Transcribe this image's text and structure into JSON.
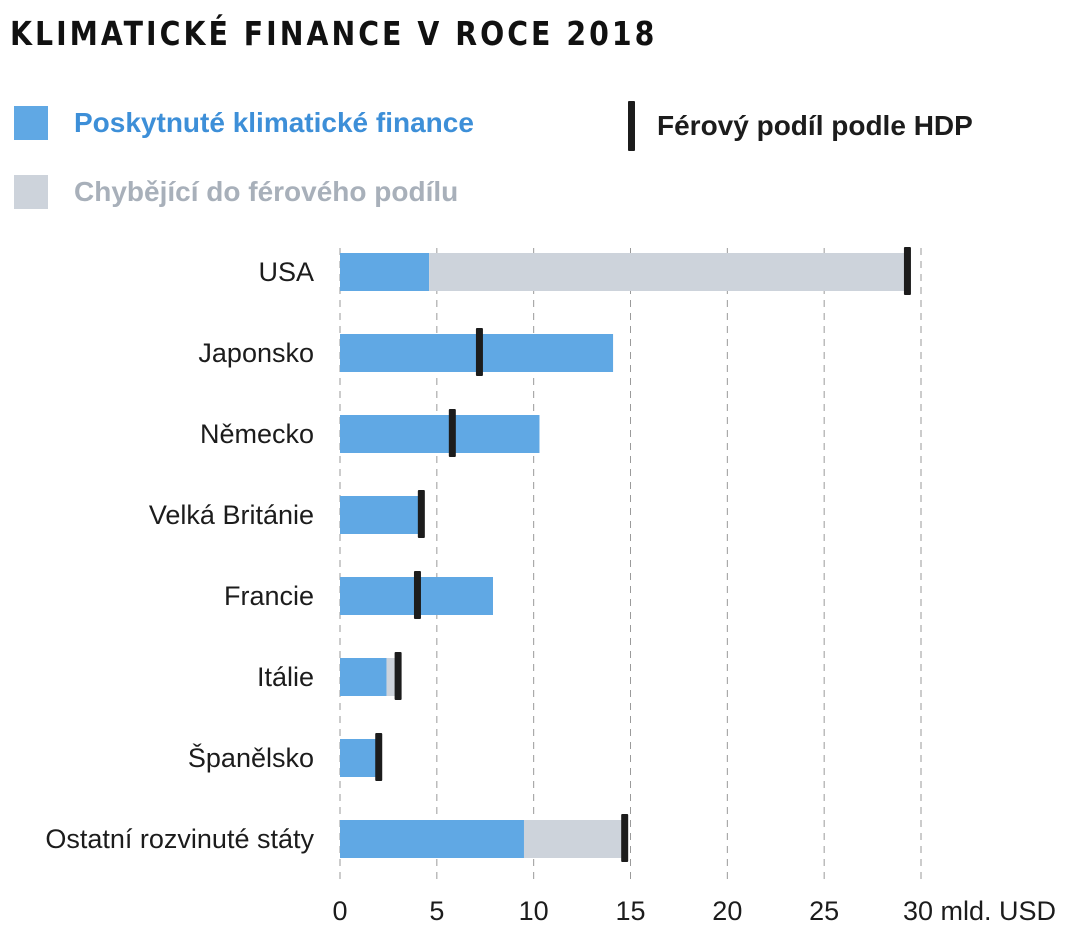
{
  "title": "KLIMATICKÉ FINANCE V ROCE 2018",
  "legend": {
    "provided": {
      "label": "Poskytnuté klimatické finance",
      "color": "#60a8e4",
      "text_color": "#3d8fd8"
    },
    "missing": {
      "label": "Chybějící do férového podílu",
      "color": "#cdd3db",
      "text_color": "#a8b0ba"
    },
    "fair_share": {
      "label": "Férový podíl podle HDP",
      "color": "#1c1c1c"
    }
  },
  "chart_data": {
    "type": "bar",
    "orientation": "horizontal",
    "stacked": true,
    "title": "KLIMATICKÉ FINANCE V ROCE 2018",
    "categories": [
      "USA",
      "Japonsko",
      "Německo",
      "Velká Británie",
      "Francie",
      "Itálie",
      "Španělsko",
      "Ostatní rozvinuté státy"
    ],
    "series": [
      {
        "name": "Poskytnuté klimatické finance",
        "values": [
          4.6,
          14.1,
          10.3,
          4.1,
          7.9,
          2.4,
          1.9,
          9.5
        ],
        "color": "#60a8e4"
      },
      {
        "name": "Chybějící do férového podílu",
        "values": [
          24.7,
          0,
          0,
          0,
          0,
          0.6,
          0,
          5.2
        ],
        "color": "#cdd3db"
      }
    ],
    "markers": {
      "name": "Férový podíl podle HDP",
      "values": [
        29.3,
        7.2,
        5.8,
        4.2,
        4.0,
        3.0,
        2.0,
        14.7
      ],
      "color": "#1c1c1c"
    },
    "xlim": [
      0,
      30
    ],
    "xticks": [
      0,
      5,
      10,
      15,
      20,
      25,
      30
    ],
    "xtick_labels": [
      "0",
      "5",
      "10",
      "15",
      "20",
      "25",
      "30 mld. USD"
    ],
    "grid": "vertical dashed"
  }
}
